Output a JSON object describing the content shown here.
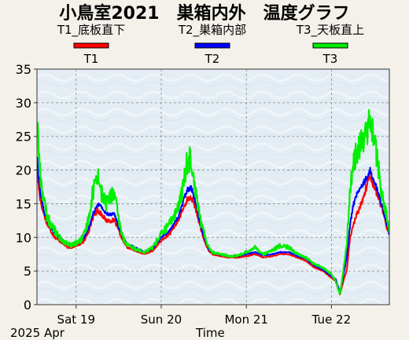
{
  "chart_data": {
    "type": "line",
    "title": "小鳥室2021　巣箱内外　温度グラフ",
    "xlabel": "Time",
    "x_range_start": "2025 Apr",
    "ylabel": "",
    "ylim": [
      0,
      35
    ],
    "y_ticks": [
      "0",
      "5",
      "10",
      "15",
      "20",
      "25",
      "30",
      "35"
    ],
    "x_ticks": [
      {
        "label": "Sat 19",
        "day": 1
      },
      {
        "label": "Sun 20",
        "day": 2
      },
      {
        "label": "Mon 21",
        "day": 3
      },
      {
        "label": "Tue 22",
        "day": 4
      }
    ],
    "x_range_days": [
      0.54,
      4.68
    ],
    "grid": true,
    "legend_position": "top",
    "series": [
      {
        "name": "T1_底板直下",
        "short": "T1",
        "color": "#ff0000",
        "noise": 0.4,
        "x": [
          0.54,
          0.56,
          0.58,
          0.62,
          0.66,
          0.7,
          0.75,
          0.8,
          0.85,
          0.9,
          0.95,
          1.0,
          1.05,
          1.1,
          1.15,
          1.2,
          1.25,
          1.3,
          1.35,
          1.4,
          1.45,
          1.5,
          1.55,
          1.6,
          1.7,
          1.8,
          1.9,
          2.0,
          2.1,
          2.2,
          2.25,
          2.3,
          2.35,
          2.4,
          2.44,
          2.48,
          2.52,
          2.56,
          2.6,
          2.7,
          2.8,
          2.9,
          3.0,
          3.1,
          3.2,
          3.3,
          3.4,
          3.5,
          3.6,
          3.7,
          3.8,
          3.9,
          4.0,
          4.05,
          4.1,
          4.15,
          4.18,
          4.22,
          4.26,
          4.3,
          4.35,
          4.4,
          4.45,
          4.5,
          4.55,
          4.6,
          4.65,
          4.68
        ],
        "y": [
          20.5,
          17.5,
          15.5,
          13.5,
          12,
          11,
          10,
          9.5,
          9,
          8.5,
          8.5,
          8.8,
          9,
          9.5,
          11,
          13,
          14,
          13.5,
          12.5,
          12.5,
          12.5,
          11,
          9.5,
          8.5,
          8,
          7.5,
          8,
          9.5,
          10.5,
          12.5,
          14,
          15.5,
          16,
          14.5,
          12.5,
          10.5,
          9,
          8,
          7.5,
          7.2,
          7,
          7,
          7.2,
          7.5,
          7,
          7.2,
          7.5,
          7.5,
          7,
          6.5,
          5.5,
          5,
          4,
          3.5,
          1.5,
          4,
          5,
          10,
          12,
          13.5,
          15,
          17,
          19.5,
          17.5,
          16,
          14,
          11.5,
          10.5
        ]
      },
      {
        "name": "T2_巣箱内部",
        "short": "T2",
        "color": "#0000ff",
        "noise": 0.3,
        "x": [
          0.54,
          0.56,
          0.58,
          0.62,
          0.66,
          0.7,
          0.75,
          0.8,
          0.85,
          0.9,
          0.95,
          1.0,
          1.05,
          1.1,
          1.15,
          1.2,
          1.25,
          1.3,
          1.35,
          1.4,
          1.45,
          1.5,
          1.55,
          1.6,
          1.7,
          1.8,
          1.9,
          2.0,
          2.1,
          2.2,
          2.25,
          2.3,
          2.35,
          2.4,
          2.44,
          2.48,
          2.52,
          2.56,
          2.6,
          2.7,
          2.8,
          2.9,
          3.0,
          3.1,
          3.2,
          3.3,
          3.4,
          3.5,
          3.6,
          3.7,
          3.8,
          3.9,
          4.0,
          4.05,
          4.1,
          4.15,
          4.18,
          4.22,
          4.26,
          4.3,
          4.35,
          4.4,
          4.45,
          4.5,
          4.55,
          4.6,
          4.65,
          4.68
        ],
        "y": [
          22,
          19,
          16.5,
          14,
          12.5,
          11.5,
          10.5,
          10,
          9.5,
          9,
          9,
          9.3,
          9.5,
          10,
          11.5,
          13.5,
          15,
          14.5,
          13.5,
          13.5,
          13.5,
          11.5,
          10,
          9,
          8.5,
          7.8,
          8.3,
          10,
          11,
          13,
          15,
          17,
          17.5,
          15.5,
          13,
          11,
          9.5,
          8.2,
          7.7,
          7.4,
          7.2,
          7.2,
          7.5,
          7.8,
          7.3,
          7.5,
          7.8,
          7.8,
          7.2,
          6.8,
          5.8,
          5.2,
          4.2,
          3.8,
          1.8,
          5,
          7,
          12,
          15,
          16.5,
          17.5,
          18.5,
          20,
          18.5,
          16.5,
          14.5,
          12,
          10.5
        ]
      },
      {
        "name": "T3_天板直上",
        "short": "T3",
        "color": "#00ee00",
        "noise": 1.0,
        "x": [
          0.54,
          0.56,
          0.58,
          0.62,
          0.66,
          0.7,
          0.75,
          0.8,
          0.85,
          0.9,
          0.95,
          1.0,
          1.05,
          1.1,
          1.15,
          1.2,
          1.25,
          1.3,
          1.35,
          1.4,
          1.45,
          1.5,
          1.55,
          1.6,
          1.7,
          1.8,
          1.9,
          2.0,
          2.1,
          2.2,
          2.25,
          2.3,
          2.35,
          2.4,
          2.44,
          2.48,
          2.52,
          2.56,
          2.6,
          2.7,
          2.8,
          2.9,
          3.0,
          3.1,
          3.2,
          3.3,
          3.4,
          3.5,
          3.6,
          3.7,
          3.8,
          3.9,
          4.0,
          4.05,
          4.1,
          4.15,
          4.18,
          4.22,
          4.26,
          4.3,
          4.35,
          4.4,
          4.45,
          4.5,
          4.55,
          4.6,
          4.65,
          4.68
        ],
        "y": [
          28,
          23,
          19,
          15.5,
          13,
          12,
          11,
          10,
          9.5,
          9,
          8.8,
          9.2,
          9.5,
          10.5,
          13,
          17,
          19.5,
          16.5,
          15,
          16,
          16.5,
          12.5,
          10,
          8.8,
          8.3,
          7.8,
          8.5,
          10.5,
          12,
          14.5,
          17,
          21,
          22,
          17.5,
          14,
          11.5,
          10,
          8.5,
          7.8,
          7.5,
          7.2,
          7.3,
          7.8,
          8.5,
          7.5,
          8,
          8.8,
          8.5,
          7.5,
          7,
          6,
          5.5,
          4.5,
          3.5,
          1.5,
          6,
          9,
          17,
          21,
          23,
          24,
          25,
          27,
          25,
          20,
          16,
          13,
          10.5
        ]
      }
    ]
  }
}
